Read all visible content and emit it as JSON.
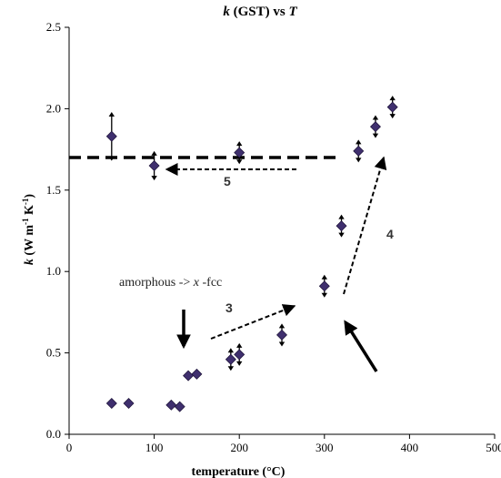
{
  "chart_data": {
    "type": "scatter",
    "title": {
      "k": "k",
      "mid": " (GST) vs ",
      "T": "T"
    },
    "xlabel": "temperature (°C)",
    "ylabel": {
      "k": "k",
      "rest": " (W m",
      "exp1": "-1",
      "sp": " K",
      "exp2": "-1",
      "close": ")"
    },
    "xlim": [
      0,
      500
    ],
    "ylim": [
      0,
      2.5
    ],
    "xticks": [
      "0",
      "100",
      "200",
      "300",
      "400",
      "500"
    ],
    "yticks": [
      "0.0",
      "0.5",
      "1.0",
      "1.5",
      "2.0",
      "2.5"
    ],
    "marker_color": "#3f2f6e",
    "grid": false,
    "series": [
      {
        "points": [
          {
            "x": 50,
            "y": 1.83,
            "err": 0.15
          },
          {
            "x": 100,
            "y": 1.65,
            "err": 0.09
          },
          {
            "x": 200,
            "y": 1.73,
            "err": 0.07
          },
          {
            "x": 340,
            "y": 1.74,
            "err": 0.07
          },
          {
            "x": 360,
            "y": 1.89,
            "err": 0.07
          },
          {
            "x": 380,
            "y": 2.01,
            "err": 0.07
          },
          {
            "x": 320,
            "y": 1.28,
            "err": 0.07
          },
          {
            "x": 300,
            "y": 0.91,
            "err": 0.07
          },
          {
            "x": 250,
            "y": 0.61,
            "err": 0.07
          },
          {
            "x": 200,
            "y": 0.49,
            "err": 0.07
          },
          {
            "x": 190,
            "y": 0.46,
            "err": 0.07
          },
          {
            "x": 150,
            "y": 0.37,
            "err": 0
          },
          {
            "x": 140,
            "y": 0.36,
            "err": 0
          },
          {
            "x": 130,
            "y": 0.17,
            "err": 0
          },
          {
            "x": 120,
            "y": 0.18,
            "err": 0
          },
          {
            "x": 70,
            "y": 0.19,
            "err": 0
          },
          {
            "x": 50,
            "y": 0.19,
            "err": 0
          }
        ]
      }
    ],
    "reference_line": {
      "y": 1.7,
      "x_from": 0,
      "x_to": 320,
      "style": "dashed"
    },
    "annotations": {
      "phase": {
        "prefix": "amorphous -> ",
        "x": "x",
        "suffix": " -fcc"
      },
      "label3": "3",
      "label4": "4",
      "label5": "5"
    }
  }
}
